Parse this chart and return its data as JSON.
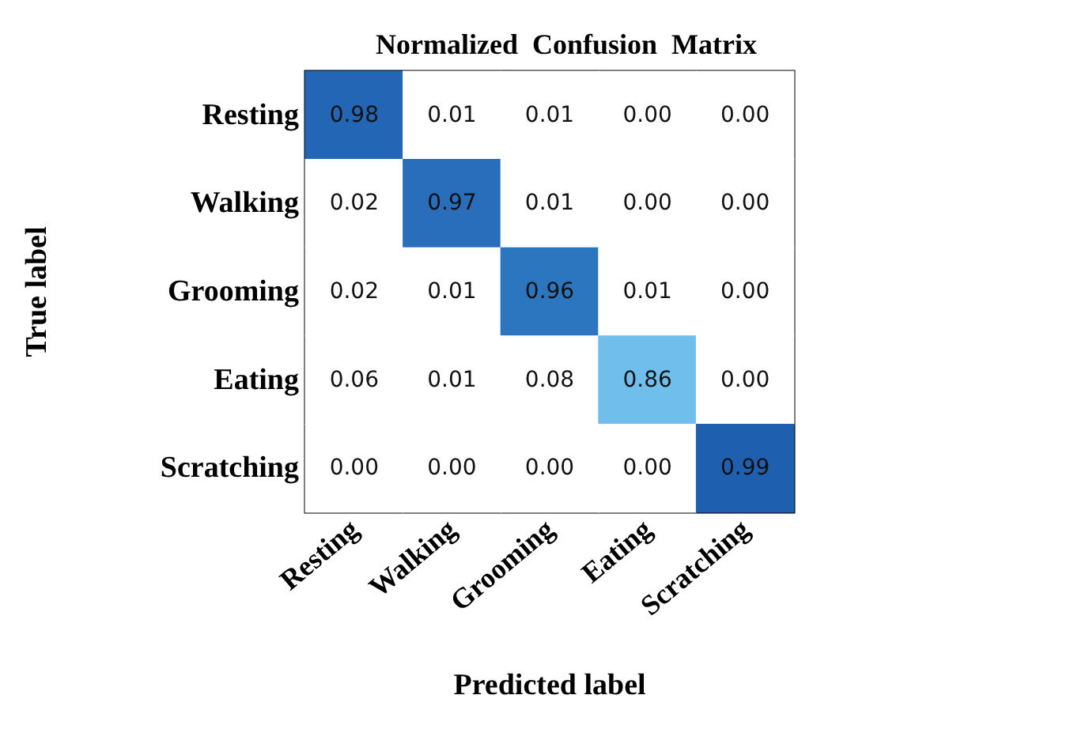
{
  "chart_data": {
    "type": "heatmap",
    "title": "Normalized  Confusion  Matrix",
    "xlabel": "Predicted label",
    "ylabel": "True label",
    "categories": [
      "Resting",
      "Walking",
      "Grooming",
      "Eating",
      "Scratching"
    ],
    "y_categories": [
      "Resting",
      "Walking",
      "Grooming",
      "Eating",
      "Scratching"
    ],
    "cells": [
      [
        0.98,
        0.01,
        0.01,
        0.0,
        0.0
      ],
      [
        0.02,
        0.97,
        0.01,
        0.0,
        0.0
      ],
      [
        0.02,
        0.01,
        0.96,
        0.01,
        0.0
      ],
      [
        0.06,
        0.01,
        0.08,
        0.86,
        0.0
      ],
      [
        0.0,
        0.0,
        0.0,
        0.0,
        0.99
      ]
    ],
    "cell_labels": [
      [
        "0.98",
        "0.01",
        "0.01",
        "0.00",
        "0.00"
      ],
      [
        "0.02",
        "0.97",
        "0.01",
        "0.00",
        "0.00"
      ],
      [
        "0.02",
        "0.01",
        "0.96",
        "0.01",
        "0.00"
      ],
      [
        "0.06",
        "0.01",
        "0.08",
        "0.86",
        "0.00"
      ],
      [
        "0.00",
        "0.00",
        "0.00",
        "0.00",
        "0.99"
      ]
    ]
  }
}
